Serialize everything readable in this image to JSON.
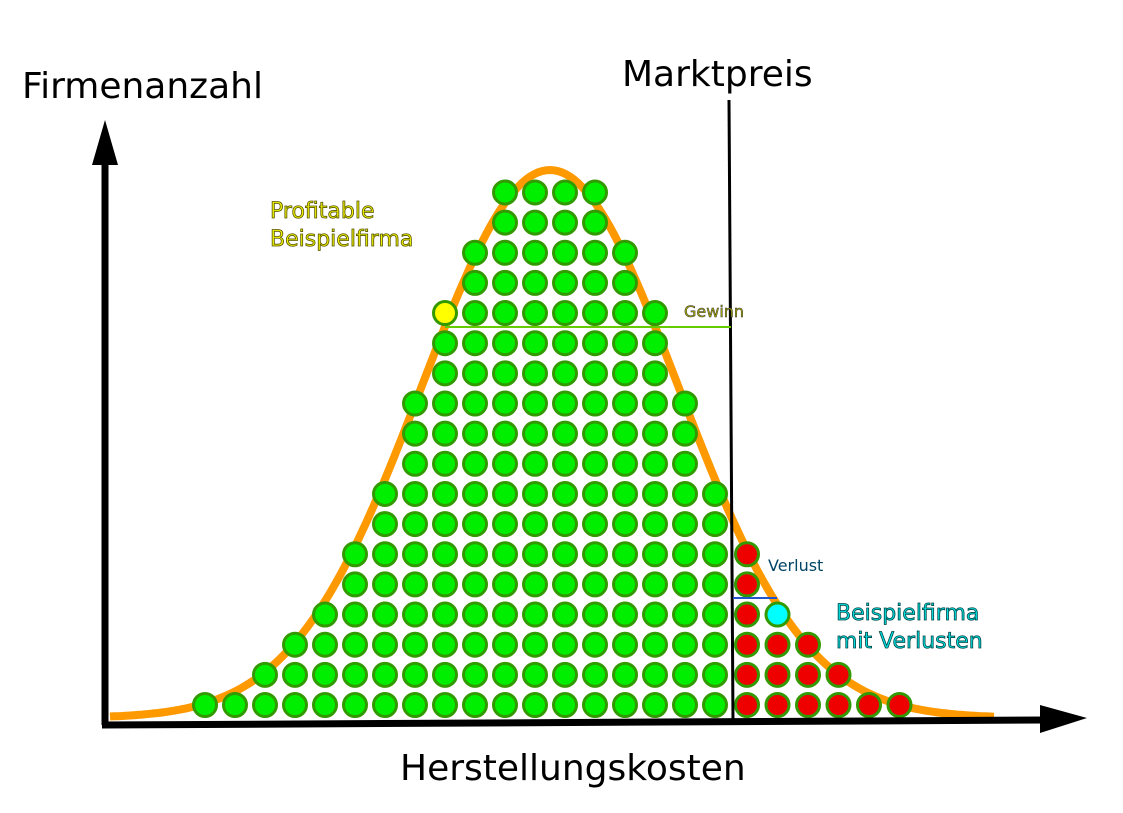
{
  "labels": {
    "y_axis": "Firmenanzahl",
    "x_axis": "Herstellungskosten",
    "market_price": "Marktpreis",
    "profitable_firm": [
      "Profitable",
      "Beispielfirma"
    ],
    "profit": "Gewinn",
    "loss": "Verlust",
    "losing_firm": [
      "Beispielfirma",
      "mit Verlusten"
    ]
  }
}
